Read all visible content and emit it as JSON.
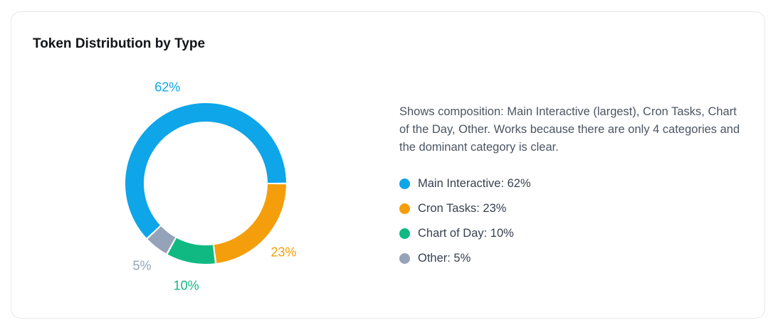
{
  "card": {
    "title": "Token Distribution by Type",
    "description": "Shows composition: Main Interactive (largest), Cron Tasks, Chart of the Day, Other. Works because there are only 4 categories and the dominant category is clear."
  },
  "chart_data": {
    "type": "pie",
    "variant": "donut",
    "title": "Token Distribution by Type",
    "unit": "%",
    "categories": [
      "Main Interactive",
      "Cron Tasks",
      "Chart of Day",
      "Other"
    ],
    "values": [
      62,
      23,
      10,
      5
    ],
    "data_labels": [
      "62%",
      "23%",
      "10%",
      "5%"
    ],
    "colors": [
      "#0ea5e9",
      "#f59e0b",
      "#10b981",
      "#94a3b8"
    ],
    "legend_position": "right"
  },
  "legend": [
    {
      "label": "Main Interactive: 62%",
      "color": "#0ea5e9"
    },
    {
      "label": "Cron Tasks: 23%",
      "color": "#f59e0b"
    },
    {
      "label": "Chart of Day: 10%",
      "color": "#10b981"
    },
    {
      "label": "Other: 5%",
      "color": "#94a3b8"
    }
  ]
}
